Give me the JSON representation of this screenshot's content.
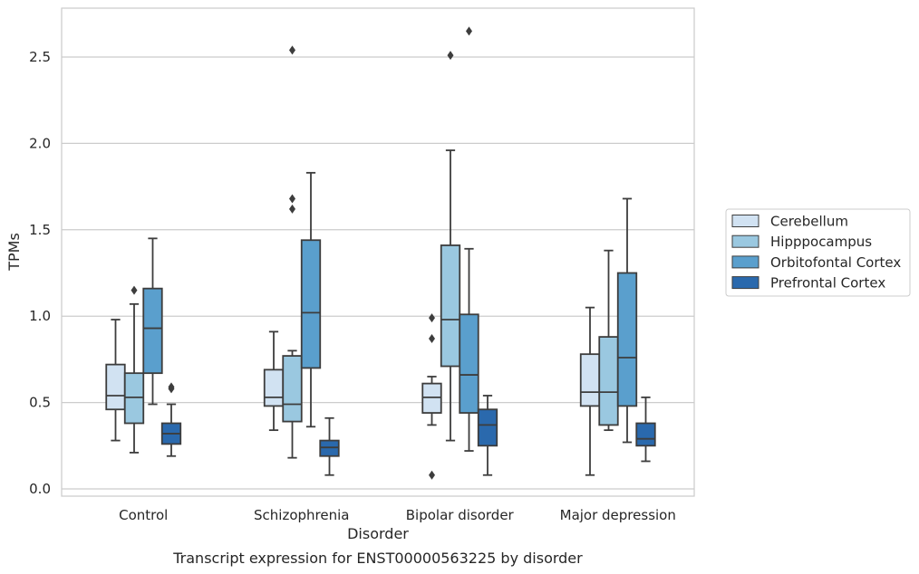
{
  "chart_data": {
    "type": "boxplot",
    "xlabel": "Disorder",
    "ylabel": "TPMs",
    "caption": "Transcript expression for ENST00000563225 by disorder",
    "ylim": [
      -0.04,
      2.79
    ],
    "yticks": [
      "0.0",
      "0.5",
      "1.0",
      "1.5",
      "2.0",
      "2.5"
    ],
    "grid": "horizontal",
    "legend_position": "right",
    "categories": [
      "Control",
      "Schizophrenia",
      "Bipolar disorder",
      "Major depression"
    ],
    "series": [
      {
        "name": "Cerebellum",
        "color": "#d1e2f2",
        "boxes": [
          {
            "whislo": 0.28,
            "q1": 0.46,
            "med": 0.54,
            "q3": 0.72,
            "whishi": 0.98,
            "fliers": []
          },
          {
            "whislo": 0.34,
            "q1": 0.48,
            "med": 0.53,
            "q3": 0.69,
            "whishi": 0.91,
            "fliers": []
          },
          {
            "whislo": 0.37,
            "q1": 0.44,
            "med": 0.53,
            "q3": 0.61,
            "whishi": 0.65,
            "fliers": [
              0.08,
              0.87,
              0.99
            ]
          },
          {
            "whislo": 0.08,
            "q1": 0.48,
            "med": 0.56,
            "q3": 0.78,
            "whishi": 1.05,
            "fliers": []
          }
        ]
      },
      {
        "name": "Hipppocampus",
        "color": "#9ac8e0",
        "boxes": [
          {
            "whislo": 0.21,
            "q1": 0.38,
            "med": 0.53,
            "q3": 0.67,
            "whishi": 1.07,
            "fliers": [
              1.15
            ]
          },
          {
            "whislo": 0.18,
            "q1": 0.39,
            "med": 0.49,
            "q3": 0.77,
            "whishi": 0.8,
            "fliers": [
              1.62,
              1.68,
              2.54
            ]
          },
          {
            "whislo": 0.28,
            "q1": 0.71,
            "med": 0.98,
            "q3": 1.41,
            "whishi": 1.96,
            "fliers": [
              2.51
            ]
          },
          {
            "whislo": 0.34,
            "q1": 0.37,
            "med": 0.56,
            "q3": 0.88,
            "whishi": 1.38,
            "fliers": []
          }
        ]
      },
      {
        "name": "Orbitofontal Cortex",
        "color": "#5a9fcd",
        "boxes": [
          {
            "whislo": 0.49,
            "q1": 0.67,
            "med": 0.93,
            "q3": 1.16,
            "whishi": 1.45,
            "fliers": []
          },
          {
            "whislo": 0.36,
            "q1": 0.7,
            "med": 1.02,
            "q3": 1.44,
            "whishi": 1.83,
            "fliers": []
          },
          {
            "whislo": 0.22,
            "q1": 0.44,
            "med": 0.66,
            "q3": 1.01,
            "whishi": 1.39,
            "fliers": [
              2.65
            ]
          },
          {
            "whislo": 0.27,
            "q1": 0.48,
            "med": 0.76,
            "q3": 1.25,
            "whishi": 1.68,
            "fliers": []
          }
        ]
      },
      {
        "name": "Prefrontal Cortex",
        "color": "#2a69ad",
        "boxes": [
          {
            "whislo": 0.19,
            "q1": 0.26,
            "med": 0.32,
            "q3": 0.38,
            "whishi": 0.49,
            "fliers": [
              0.58,
              0.59
            ]
          },
          {
            "whislo": 0.08,
            "q1": 0.19,
            "med": 0.24,
            "q3": 0.28,
            "whishi": 0.41,
            "fliers": []
          },
          {
            "whislo": 0.08,
            "q1": 0.25,
            "med": 0.37,
            "q3": 0.46,
            "whishi": 0.54,
            "fliers": []
          },
          {
            "whislo": 0.16,
            "q1": 0.25,
            "med": 0.29,
            "q3": 0.38,
            "whishi": 0.53,
            "fliers": []
          }
        ]
      }
    ]
  }
}
